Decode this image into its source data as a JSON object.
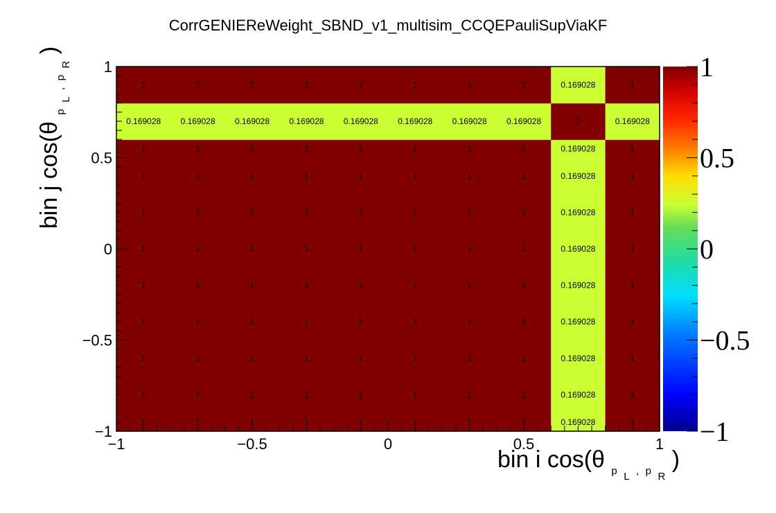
{
  "chart_data": {
    "type": "heatmap",
    "title": "CorrGENIEReWeight_SBND_v1_multisim_CCQEPauliSupViaKF",
    "xlabel": {
      "prefix": "bin i cos(θ",
      "sub1": "p",
      "sub1_sub": "L",
      "comma": ",",
      "sub2": "p",
      "sub2_sub": "R",
      "suffix": ")"
    },
    "ylabel": {
      "prefix": "bin j cos(θ",
      "sub1": "p",
      "sub1_sub": "L",
      "comma": ",",
      "sub2": "p",
      "sub2_sub": "R",
      "suffix": ")"
    },
    "xlim": [
      -1,
      1
    ],
    "ylim": [
      -1,
      1
    ],
    "zlim": [
      -1,
      1
    ],
    "x_ticks": [
      "−1",
      "−0.5",
      "0",
      "0.5",
      "1"
    ],
    "y_ticks": [
      "−1",
      "−0.5",
      "0",
      "0.5",
      "1"
    ],
    "palette_ticks": [
      "−1",
      "−0.5",
      "0",
      "0.5",
      "1"
    ],
    "palette_tick_values": [
      -1,
      -0.5,
      0,
      0.5,
      1
    ],
    "x_bin_edges": [
      -1,
      -0.8,
      -0.6,
      -0.4,
      -0.2,
      0,
      0.2,
      0.4,
      0.6,
      0.8,
      1
    ],
    "y_bin_edges": [
      -1,
      -0.9,
      -0.7,
      -0.5,
      -0.3,
      -0.1,
      0.1,
      0.3,
      0.5,
      0.6,
      0.8,
      1
    ],
    "special_row": 9,
    "special_col": 8,
    "rows": [
      {
        "y_bin": 0,
        "values": [
          1,
          1,
          1,
          1,
          1,
          1,
          1,
          1,
          0.169028,
          1
        ],
        "labels": [
          "1",
          "1",
          "1",
          "1",
          "1",
          "1",
          "1",
          "1",
          "0.169028",
          "1"
        ]
      },
      {
        "y_bin": 1,
        "values": [
          1,
          1,
          1,
          1,
          1,
          1,
          1,
          1,
          0.169028,
          1
        ],
        "labels": [
          "1",
          "1",
          "1",
          "1",
          "1",
          "1",
          "1",
          "1",
          "0.169028",
          "1"
        ]
      },
      {
        "y_bin": 2,
        "values": [
          1,
          1,
          1,
          1,
          1,
          1,
          1,
          1,
          0.169028,
          1
        ],
        "labels": [
          "1",
          "1",
          "1",
          "1",
          "1",
          "1",
          "1",
          "1",
          "0.169028",
          "1"
        ]
      },
      {
        "y_bin": 3,
        "values": [
          1,
          1,
          1,
          1,
          1,
          1,
          1,
          1,
          0.169028,
          1
        ],
        "labels": [
          "1",
          "1",
          "1",
          "1",
          "1",
          "1",
          "1",
          "1",
          "0.169028",
          "1"
        ]
      },
      {
        "y_bin": 4,
        "values": [
          1,
          1,
          1,
          1,
          1,
          1,
          1,
          1,
          0.169028,
          1
        ],
        "labels": [
          "1",
          "1",
          "1",
          "1",
          "1",
          "1",
          "1",
          "1",
          "0.169028",
          "1"
        ]
      },
      {
        "y_bin": 5,
        "values": [
          1,
          1,
          1,
          1,
          1,
          1,
          1,
          1,
          0.169028,
          1
        ],
        "labels": [
          "1",
          "1",
          "1",
          "1",
          "1",
          "1",
          "1",
          "1",
          "0.169028",
          "1"
        ]
      },
      {
        "y_bin": 6,
        "values": [
          1,
          1,
          1,
          1,
          1,
          1,
          1,
          1,
          0.169028,
          1
        ],
        "labels": [
          "1",
          "1",
          "1",
          "1",
          "1",
          "1",
          "1",
          "1",
          "0.169028",
          "1"
        ]
      },
      {
        "y_bin": 7,
        "values": [
          1,
          1,
          1,
          1,
          1,
          1,
          1,
          1,
          0.169028,
          1
        ],
        "labels": [
          "1",
          "1",
          "1",
          "1",
          "1",
          "1",
          "1",
          "1",
          "0.169028",
          "1"
        ]
      },
      {
        "y_bin": 8,
        "values": [
          1,
          1,
          1,
          1,
          1,
          1,
          1,
          1,
          0.169028,
          1
        ],
        "labels": [
          "1",
          "1",
          "1",
          "1",
          "1",
          "1",
          "1",
          "1",
          "0.169028",
          "1"
        ]
      },
      {
        "y_bin": 9,
        "values": [
          0.169028,
          0.169028,
          0.169028,
          0.169028,
          0.169028,
          0.169028,
          0.169028,
          0.169028,
          1,
          0.169028
        ],
        "labels": [
          "0.169028",
          "0.169028",
          "0.169028",
          "0.169028",
          "0.169028",
          "0.169028",
          "0.169028",
          "0.169028",
          "1",
          "0.169028"
        ]
      },
      {
        "y_bin": 10,
        "values": [
          1,
          1,
          1,
          1,
          1,
          1,
          1,
          1,
          0.169028,
          1
        ],
        "labels": [
          "1",
          "1",
          "1",
          "1",
          "1",
          "1",
          "1",
          "1",
          "0.169028",
          "1"
        ]
      }
    ],
    "colors": {
      "high": "#800000",
      "mid": "#ccff33",
      "frame": "#000000"
    },
    "palette": "rainbow (dark blue → cyan → green → yellow → red → dark red)",
    "grid": false,
    "legend": "color palette on the right"
  }
}
